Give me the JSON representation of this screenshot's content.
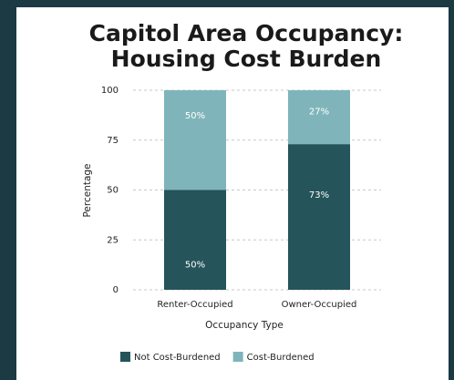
{
  "chart_data": {
    "type": "stacked_bar",
    "title": [
      "Capitol Area Occupancy:",
      "Housing Cost Burden"
    ],
    "x_label": "Occupancy Type",
    "y_label": "Percentage",
    "categories": [
      "Renter-Occupied",
      "Owner-Occupied"
    ],
    "series": [
      {
        "name": "Not Cost-Burdened",
        "color": "#25545a",
        "values": [
          50,
          73
        ],
        "value_labels": [
          "50%",
          "73%"
        ]
      },
      {
        "name": "Cost-Burdened",
        "color": "#80b4bb",
        "values": [
          50,
          27
        ],
        "value_labels": [
          "50%",
          "27%"
        ]
      }
    ],
    "ylim": [
      0,
      100
    ],
    "yticks": [
      0,
      25,
      50,
      75,
      100
    ],
    "grid": true,
    "legend": "bottom"
  }
}
